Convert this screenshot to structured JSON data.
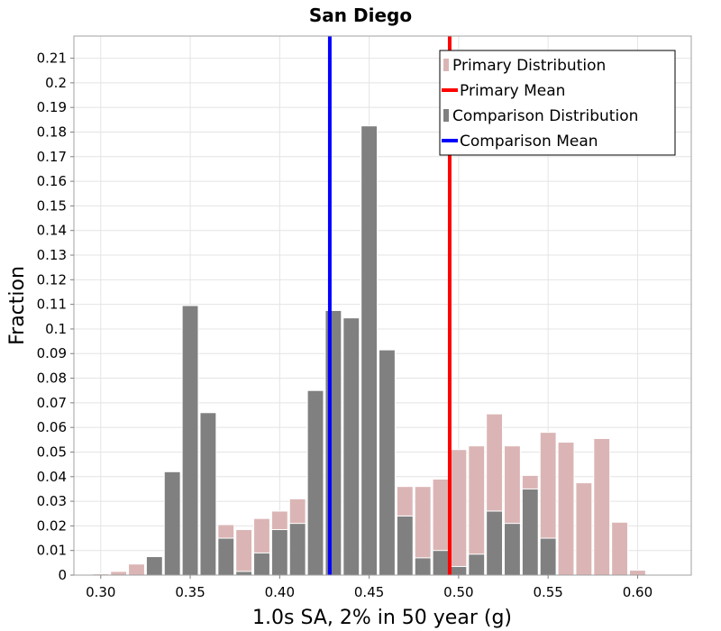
{
  "chart_data": {
    "type": "bar",
    "title": "San Diego",
    "xlabel": "1.0s SA, 2% in 50 year (g)",
    "ylabel": "Fraction",
    "xlim": [
      0.285,
      0.63
    ],
    "ylim": [
      0,
      0.219
    ],
    "bin_width": 0.01,
    "x_ticks": [
      {
        "value": 0.3,
        "label": "0.30"
      },
      {
        "value": 0.35,
        "label": "0.35"
      },
      {
        "value": 0.4,
        "label": "0.40"
      },
      {
        "value": 0.45,
        "label": "0.45"
      },
      {
        "value": 0.5,
        "label": "0.50"
      },
      {
        "value": 0.55,
        "label": "0.55"
      },
      {
        "value": 0.6,
        "label": "0.60"
      }
    ],
    "y_ticks": [
      {
        "value": 0,
        "label": "0"
      },
      {
        "value": 0.01,
        "label": "0.01"
      },
      {
        "value": 0.02,
        "label": "0.02"
      },
      {
        "value": 0.03,
        "label": "0.03"
      },
      {
        "value": 0.04,
        "label": "0.04"
      },
      {
        "value": 0.05,
        "label": "0.05"
      },
      {
        "value": 0.06,
        "label": "0.06"
      },
      {
        "value": 0.07,
        "label": "0.07"
      },
      {
        "value": 0.08,
        "label": "0.08"
      },
      {
        "value": 0.09,
        "label": "0.09"
      },
      {
        "value": 0.1,
        "label": "0.1"
      },
      {
        "value": 0.11,
        "label": "0.11"
      },
      {
        "value": 0.12,
        "label": "0.12"
      },
      {
        "value": 0.13,
        "label": "0.13"
      },
      {
        "value": 0.14,
        "label": "0.14"
      },
      {
        "value": 0.15,
        "label": "0.15"
      },
      {
        "value": 0.16,
        "label": "0.16"
      },
      {
        "value": 0.17,
        "label": "0.17"
      },
      {
        "value": 0.18,
        "label": "0.18"
      },
      {
        "value": 0.19,
        "label": "0.19"
      },
      {
        "value": 0.2,
        "label": "0.2"
      },
      {
        "value": 0.21,
        "label": "0.21"
      }
    ],
    "grid": true,
    "legend_position": "top-right",
    "series": [
      {
        "name": "Primary Distribution",
        "color": "#dbb5b5",
        "bins": [
          {
            "x": 0.3,
            "value": 0.0005
          },
          {
            "x": 0.31,
            "value": 0.0015
          },
          {
            "x": 0.32,
            "value": 0.0045
          },
          {
            "x": 0.33,
            "value": 0.0
          },
          {
            "x": 0.34,
            "value": 0.0
          },
          {
            "x": 0.35,
            "value": 0.0
          },
          {
            "x": 0.36,
            "value": 0.0
          },
          {
            "x": 0.37,
            "value": 0.0205
          },
          {
            "x": 0.38,
            "value": 0.0185
          },
          {
            "x": 0.39,
            "value": 0.023
          },
          {
            "x": 0.4,
            "value": 0.026
          },
          {
            "x": 0.41,
            "value": 0.031
          },
          {
            "x": 0.42,
            "value": 0.0
          },
          {
            "x": 0.43,
            "value": 0.0
          },
          {
            "x": 0.44,
            "value": 0.0
          },
          {
            "x": 0.45,
            "value": 0.0
          },
          {
            "x": 0.46,
            "value": 0.032
          },
          {
            "x": 0.47,
            "value": 0.036
          },
          {
            "x": 0.48,
            "value": 0.036
          },
          {
            "x": 0.49,
            "value": 0.039
          },
          {
            "x": 0.5,
            "value": 0.051
          },
          {
            "x": 0.51,
            "value": 0.0525
          },
          {
            "x": 0.52,
            "value": 0.0655
          },
          {
            "x": 0.53,
            "value": 0.0525
          },
          {
            "x": 0.54,
            "value": 0.0405
          },
          {
            "x": 0.55,
            "value": 0.058
          },
          {
            "x": 0.56,
            "value": 0.054
          },
          {
            "x": 0.57,
            "value": 0.0375
          },
          {
            "x": 0.58,
            "value": 0.0555
          },
          {
            "x": 0.59,
            "value": 0.0215
          },
          {
            "x": 0.6,
            "value": 0.002
          }
        ]
      },
      {
        "name": "Comparison Distribution",
        "color": "#808080",
        "bins": [
          {
            "x": 0.33,
            "value": 0.0075
          },
          {
            "x": 0.34,
            "value": 0.042
          },
          {
            "x": 0.35,
            "value": 0.1095
          },
          {
            "x": 0.36,
            "value": 0.066
          },
          {
            "x": 0.37,
            "value": 0.015
          },
          {
            "x": 0.38,
            "value": 0.0015
          },
          {
            "x": 0.39,
            "value": 0.009
          },
          {
            "x": 0.4,
            "value": 0.0185
          },
          {
            "x": 0.41,
            "value": 0.021
          },
          {
            "x": 0.42,
            "value": 0.075
          },
          {
            "x": 0.43,
            "value": 0.1075
          },
          {
            "x": 0.44,
            "value": 0.1045
          },
          {
            "x": 0.45,
            "value": 0.1825
          },
          {
            "x": 0.46,
            "value": 0.0915
          },
          {
            "x": 0.47,
            "value": 0.024
          },
          {
            "x": 0.48,
            "value": 0.007
          },
          {
            "x": 0.49,
            "value": 0.01
          },
          {
            "x": 0.5,
            "value": 0.0035
          },
          {
            "x": 0.51,
            "value": 0.0085
          },
          {
            "x": 0.52,
            "value": 0.026
          },
          {
            "x": 0.53,
            "value": 0.021
          },
          {
            "x": 0.54,
            "value": 0.035
          },
          {
            "x": 0.55,
            "value": 0.015
          }
        ]
      }
    ],
    "mean_lines": [
      {
        "name": "Primary Mean",
        "value": 0.495,
        "color": "#ff0000"
      },
      {
        "name": "Comparison Mean",
        "value": 0.428,
        "color": "#0000ff"
      }
    ],
    "legend": [
      {
        "label": "Primary Distribution",
        "kind": "box",
        "color": "#dbb5b5"
      },
      {
        "label": "Primary Mean",
        "kind": "line",
        "color": "#ff0000"
      },
      {
        "label": "Comparison Distribution",
        "kind": "box",
        "color": "#808080"
      },
      {
        "label": "Comparison Mean",
        "kind": "line",
        "color": "#0000ff"
      }
    ]
  }
}
